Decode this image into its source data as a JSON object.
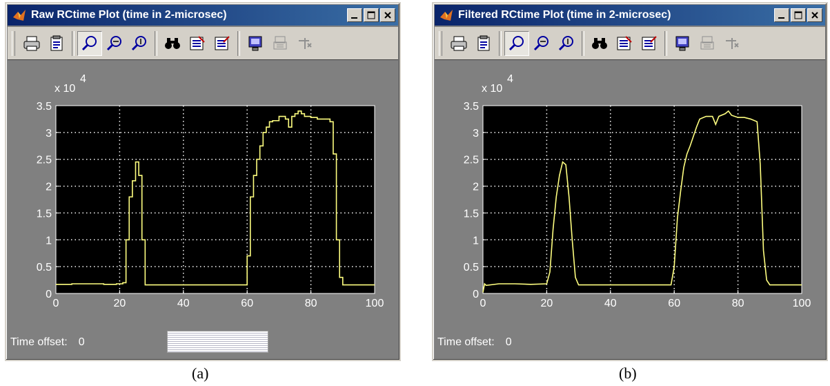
{
  "windows": [
    {
      "title": "Raw RCtime Plot  (time in 2-microsec)",
      "status_label": "Time offset:",
      "status_value": "0",
      "caption": "(a)",
      "chart_data": {
        "type": "line",
        "title": "",
        "xlabel": "",
        "ylabel": "",
        "y_exponent_label": "x 10",
        "y_exponent": "4",
        "xlim": [
          0,
          100
        ],
        "ylim": [
          0,
          3.5
        ],
        "xticks": [
          0,
          20,
          40,
          60,
          80,
          100
        ],
        "yticks": [
          0,
          0.5,
          1,
          1.5,
          2,
          2.5,
          3,
          3.5
        ],
        "xtick_labels": [
          "0",
          "20",
          "40",
          "60",
          "80",
          "100"
        ],
        "ytick_labels": [
          "0",
          "0.5",
          "1",
          "1.5",
          "2",
          "2.5",
          "3",
          "3.5"
        ],
        "grid": true,
        "line_color": "#ffff80",
        "background": "#000000",
        "step": true,
        "series": [
          {
            "x": [
              0,
              5,
              10,
              15,
              19,
              21,
              22,
              23,
              24,
              25,
              26,
              27,
              28,
              30,
              40,
              50,
              59,
              60,
              61,
              62,
              63,
              64,
              65,
              66,
              67,
              68,
              70,
              72,
              73,
              74,
              75,
              76,
              77,
              78,
              80,
              82,
              84,
              86,
              87,
              88,
              89,
              90,
              95,
              100
            ],
            "y": [
              0.17,
              0.18,
              0.18,
              0.17,
              0.18,
              0.2,
              1.0,
              1.8,
              2.1,
              2.45,
              2.2,
              1.0,
              0.16,
              0.16,
              0.16,
              0.16,
              0.16,
              0.7,
              1.8,
              2.2,
              2.5,
              2.75,
              3.0,
              3.1,
              3.2,
              3.22,
              3.3,
              3.25,
              3.1,
              3.3,
              3.35,
              3.4,
              3.35,
              3.3,
              3.28,
              3.25,
              3.25,
              3.2,
              2.6,
              1.0,
              0.3,
              0.16,
              0.16,
              0.16
            ]
          }
        ]
      }
    },
    {
      "title": "Filtered RCtime Plot  (time in 2-microsec)",
      "status_label": "Time offset:",
      "status_value": "0",
      "caption": "(b)",
      "chart_data": {
        "type": "line",
        "title": "",
        "xlabel": "",
        "ylabel": "",
        "y_exponent_label": "x 10",
        "y_exponent": "4",
        "xlim": [
          0,
          100
        ],
        "ylim": [
          0,
          3.5
        ],
        "xticks": [
          0,
          20,
          40,
          60,
          80,
          100
        ],
        "yticks": [
          0,
          0.5,
          1,
          1.5,
          2,
          2.5,
          3,
          3.5
        ],
        "xtick_labels": [
          "0",
          "20",
          "40",
          "60",
          "80",
          "100"
        ],
        "ytick_labels": [
          "0",
          "0.5",
          "1",
          "1.5",
          "2",
          "2.5",
          "3",
          "3.5"
        ],
        "grid": true,
        "line_color": "#ffff80",
        "background": "#000000",
        "step": false,
        "series": [
          {
            "x": [
              0,
              0.5,
              1,
              5,
              10,
              15,
              20,
              21,
              22,
              23,
              24,
              25,
              26,
              27,
              28,
              29,
              30,
              40,
              50,
              59,
              60,
              61,
              62,
              63,
              64,
              65,
              67,
              68,
              70,
              72,
              73,
              74,
              76,
              77,
              78,
              80,
              82,
              84,
              86,
              87,
              88,
              89,
              90,
              95,
              100
            ],
            "y": [
              0.02,
              0.18,
              0.15,
              0.18,
              0.18,
              0.17,
              0.18,
              0.4,
              1.2,
              1.8,
              2.2,
              2.45,
              2.4,
              1.8,
              1.0,
              0.3,
              0.16,
              0.16,
              0.16,
              0.16,
              0.5,
              1.4,
              1.9,
              2.35,
              2.6,
              2.75,
              3.1,
              3.25,
              3.3,
              3.3,
              3.15,
              3.3,
              3.35,
              3.4,
              3.32,
              3.28,
              3.28,
              3.25,
              3.2,
              2.4,
              0.8,
              0.25,
              0.16,
              0.16,
              0.16
            ]
          }
        ]
      }
    }
  ]
}
